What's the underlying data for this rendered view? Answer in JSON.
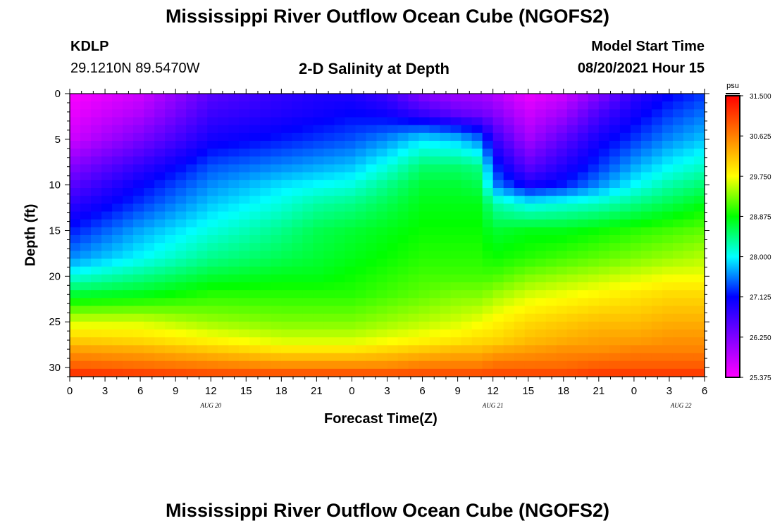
{
  "header": {
    "title": "Mississippi River Outflow Ocean Cube (NGOFS2)",
    "station_id": "KDLP",
    "station_coords": "29.1210N  89.5470W",
    "subtitle": "2-D Salinity at Depth",
    "model_start_label": "Model Start Time",
    "model_start_value": "08/20/2021 Hour 15"
  },
  "footer": {
    "title": "Mississippi River Outflow Ocean Cube (NGOFS2)"
  },
  "chart_data": {
    "type": "heatmap",
    "title": "2-D Salinity at Depth",
    "xlabel": "Forecast Time(Z)",
    "ylabel": "Depth (ft)",
    "x_tick_labels": [
      "0",
      "3",
      "6",
      "9",
      "12",
      "15",
      "18",
      "21",
      "0",
      "3",
      "6",
      "9",
      "12",
      "15",
      "18",
      "21",
      "0",
      "3",
      "6"
    ],
    "x_day_labels": [
      "AUG 20",
      "AUG 21",
      "AUG 22"
    ],
    "x_range_hours": [
      0,
      54
    ],
    "y_ticks": [
      0,
      5,
      10,
      15,
      20,
      25,
      30
    ],
    "y_range": [
      0,
      31
    ],
    "y_reversed": true,
    "colorbar": {
      "unit": "psu",
      "ticks": [
        "31.500",
        "30.625",
        "29.750",
        "28.875",
        "28.000",
        "27.125",
        "26.250",
        "25.375"
      ],
      "range": [
        25.375,
        31.5
      ],
      "palette": [
        "#ff00ff",
        "#7f00ff",
        "#0000ff",
        "#00ffff",
        "#00ff00",
        "#ffff00",
        "#ff8000",
        "#ff0000"
      ]
    },
    "salinity_profiles": {
      "depths_ft": [
        0,
        2,
        5,
        8,
        10,
        12,
        15,
        18,
        20,
        22,
        25,
        27,
        28,
        30,
        31
      ],
      "times_hours": [
        0,
        6,
        12,
        18,
        21,
        24,
        27,
        30,
        33,
        35,
        36,
        39,
        42,
        45,
        48,
        51,
        54
      ],
      "values_psu": [
        [
          25.4,
          25.5,
          25.7,
          26.2,
          26.5,
          26.8,
          27.2,
          27.6,
          28.1,
          28.7,
          29.6,
          30.1,
          30.4,
          30.9,
          31.3
        ],
        [
          25.7,
          25.9,
          26.3,
          26.8,
          27.1,
          27.3,
          27.7,
          28.0,
          28.4,
          28.8,
          29.6,
          30.0,
          30.3,
          30.8,
          31.2
        ],
        [
          26.5,
          26.7,
          27.0,
          27.4,
          27.6,
          27.8,
          28.1,
          28.4,
          28.7,
          29.0,
          29.4,
          29.8,
          30.1,
          30.7,
          31.1
        ],
        [
          26.8,
          26.9,
          27.2,
          27.6,
          27.9,
          28.1,
          28.4,
          28.6,
          28.8,
          29.0,
          29.3,
          29.6,
          29.9,
          30.6,
          31.1
        ],
        [
          26.9,
          27.0,
          27.3,
          27.7,
          28.0,
          28.3,
          28.6,
          28.7,
          28.8,
          29.0,
          29.3,
          29.6,
          29.9,
          30.6,
          31.1
        ],
        [
          26.9,
          27.1,
          27.4,
          27.8,
          28.1,
          28.4,
          28.7,
          28.8,
          28.9,
          29.0,
          29.3,
          29.6,
          29.9,
          30.6,
          31.1
        ],
        [
          26.7,
          27.0,
          27.6,
          28.1,
          28.4,
          28.6,
          28.8,
          28.9,
          29.0,
          29.1,
          29.4,
          29.7,
          30.0,
          30.6,
          31.1
        ],
        [
          26.2,
          26.7,
          27.9,
          28.5,
          28.7,
          28.8,
          28.9,
          29.0,
          29.1,
          29.2,
          29.5,
          29.8,
          30.1,
          30.7,
          31.1
        ],
        [
          26.0,
          26.4,
          27.8,
          28.5,
          28.7,
          28.8,
          28.9,
          29.0,
          29.1,
          29.3,
          29.6,
          29.9,
          30.2,
          30.7,
          31.1
        ],
        [
          26.0,
          26.3,
          27.5,
          28.4,
          28.6,
          28.8,
          28.9,
          29.0,
          29.1,
          29.3,
          29.7,
          30.0,
          30.2,
          30.7,
          31.1
        ],
        [
          25.9,
          26.2,
          26.8,
          27.3,
          27.6,
          28.3,
          28.7,
          28.9,
          29.1,
          29.4,
          29.8,
          30.0,
          30.3,
          30.8,
          31.1
        ],
        [
          25.5,
          25.7,
          26.0,
          26.5,
          27.0,
          28.0,
          28.8,
          29.0,
          29.3,
          29.6,
          30.0,
          30.2,
          30.4,
          30.8,
          31.1
        ],
        [
          25.7,
          26.0,
          26.5,
          26.9,
          27.2,
          28.1,
          28.8,
          29.1,
          29.4,
          29.7,
          30.1,
          30.3,
          30.5,
          30.8,
          31.1
        ],
        [
          26.2,
          26.6,
          27.0,
          27.3,
          27.6,
          28.2,
          28.9,
          29.2,
          29.5,
          29.8,
          30.2,
          30.4,
          30.5,
          30.9,
          31.2
        ],
        [
          26.8,
          27.0,
          27.3,
          27.7,
          28.0,
          28.4,
          29.0,
          29.3,
          29.6,
          29.9,
          30.2,
          30.4,
          30.6,
          30.9,
          31.2
        ],
        [
          27.1,
          27.3,
          27.6,
          28.0,
          28.3,
          28.6,
          29.1,
          29.4,
          29.7,
          30.0,
          30.3,
          30.5,
          30.6,
          30.9,
          31.2
        ],
        [
          27.3,
          27.5,
          27.8,
          28.2,
          28.5,
          28.8,
          29.2,
          29.5,
          29.7,
          30.0,
          30.3,
          30.5,
          30.6,
          30.9,
          31.2
        ]
      ]
    },
    "grid": false,
    "legend": "colorbar-right"
  }
}
